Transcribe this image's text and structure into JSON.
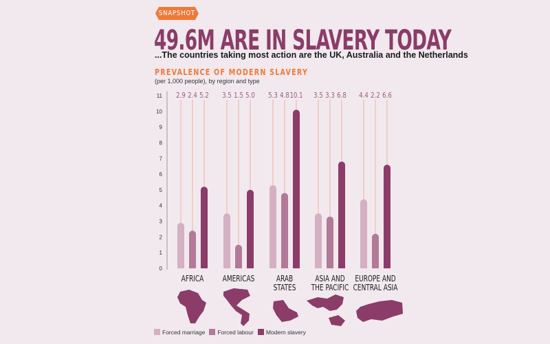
{
  "badge": "SNAPSHOT",
  "title": "49.6M ARE IN SLAVERY TODAY",
  "subtitle": "...The countries taking most action are the UK, Australia and the Netherlands",
  "chart_data": {
    "type": "bar",
    "title": "PREVALENCE OF MODERN SLAVERY",
    "subtitle": "(per 1,000 people),  by region and type",
    "categories": [
      [
        "AFRICA"
      ],
      [
        "AMERICAS"
      ],
      [
        "ARAB",
        "STATES"
      ],
      [
        "ASIA AND",
        "THE PACIFIC"
      ],
      [
        "EUROPE AND",
        "CENTRAL ASIA"
      ]
    ],
    "series": [
      {
        "name": "Forced marriage",
        "color": "#d4b0c2",
        "values": [
          2.9,
          3.5,
          5.3,
          3.5,
          4.4
        ],
        "labels": [
          "2.9",
          "3.5",
          "5.3",
          "3.5",
          "4.4"
        ]
      },
      {
        "name": "Forced labour",
        "color": "#b27a98",
        "values": [
          2.4,
          1.5,
          4.8,
          3.3,
          2.2
        ],
        "labels": [
          "2.4",
          "1.5",
          "4.8",
          "3.3",
          "2.2"
        ]
      },
      {
        "name": "Modern slavery",
        "color": "#8b3c68",
        "values": [
          5.2,
          5.0,
          10.1,
          6.8,
          6.6
        ],
        "labels": [
          "5.2",
          "5.0",
          "10.1",
          "6.8",
          "6.6"
        ]
      }
    ],
    "yticks": [
      "0",
      "1",
      "2",
      "3",
      "4",
      "5",
      "6",
      "7",
      "8",
      "9",
      "10",
      "11"
    ],
    "ylim": [
      0,
      11
    ],
    "grid": false,
    "legend": "bottom-left",
    "value_label_color": "#9a5a7e",
    "leader_line_color": "#f0a58a"
  }
}
